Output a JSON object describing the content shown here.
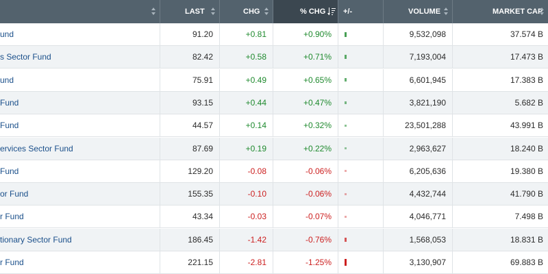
{
  "header": {
    "name": "",
    "last": "LAST",
    "chg": "CHG",
    "pct_chg": "% CHG",
    "plus_minus": "+/-",
    "volume": "VOLUME",
    "market_cap": "MARKET CAP"
  },
  "colors": {
    "positive": "#1f8a2e",
    "negative": "#cc1f1f",
    "header_bg": "#53626d"
  },
  "rows": [
    {
      "name": "und",
      "last": "91.20",
      "chg": "+0.81",
      "pct": "+0.90%",
      "dir": "up",
      "pct_value": 0.9,
      "volume": "9,532,098",
      "mcap": "37.574 B"
    },
    {
      "name": "s Sector Fund",
      "last": "82.42",
      "chg": "+0.58",
      "pct": "+0.71%",
      "dir": "up",
      "pct_value": 0.71,
      "volume": "7,193,004",
      "mcap": "17.473 B"
    },
    {
      "name": "und",
      "last": "75.91",
      "chg": "+0.49",
      "pct": "+0.65%",
      "dir": "up",
      "pct_value": 0.65,
      "volume": "6,601,945",
      "mcap": "17.383 B"
    },
    {
      "name": "Fund",
      "last": "93.15",
      "chg": "+0.44",
      "pct": "+0.47%",
      "dir": "up",
      "pct_value": 0.47,
      "volume": "3,821,190",
      "mcap": "5.682 B"
    },
    {
      "name": "Fund",
      "last": "44.57",
      "chg": "+0.14",
      "pct": "+0.32%",
      "dir": "up",
      "pct_value": 0.32,
      "volume": "23,501,288",
      "mcap": "43.991 B"
    },
    {
      "name": "ervices Sector Fund",
      "last": "87.69",
      "chg": "+0.19",
      "pct": "+0.22%",
      "dir": "up",
      "pct_value": 0.22,
      "volume": "2,963,627",
      "mcap": "18.240 B"
    },
    {
      "name": "Fund",
      "last": "129.20",
      "chg": "-0.08",
      "pct": "-0.06%",
      "dir": "down",
      "pct_value": -0.06,
      "volume": "6,205,636",
      "mcap": "19.380 B"
    },
    {
      "name": "or Fund",
      "last": "155.35",
      "chg": "-0.10",
      "pct": "-0.06%",
      "dir": "down",
      "pct_value": -0.06,
      "volume": "4,432,744",
      "mcap": "41.790 B"
    },
    {
      "name": "r Fund",
      "last": "43.34",
      "chg": "-0.03",
      "pct": "-0.07%",
      "dir": "down",
      "pct_value": -0.07,
      "volume": "4,046,771",
      "mcap": "7.498 B"
    },
    {
      "name": "tionary Sector Fund",
      "last": "186.45",
      "chg": "-1.42",
      "pct": "-0.76%",
      "dir": "down",
      "pct_value": -0.76,
      "volume": "1,568,053",
      "mcap": "18.831 B"
    },
    {
      "name": "r Fund",
      "last": "221.15",
      "chg": "-2.81",
      "pct": "-1.25%",
      "dir": "down",
      "pct_value": -1.25,
      "volume": "3,130,907",
      "mcap": "69.883 B"
    }
  ]
}
